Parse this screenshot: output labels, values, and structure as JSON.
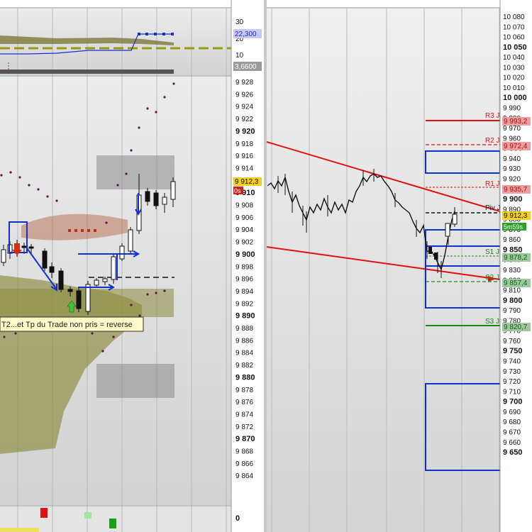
{
  "left_panel": {
    "indicator": {
      "ticks": [
        "30",
        "20",
        "10"
      ],
      "value_box": "22,300",
      "value_box_2": "3,6600"
    },
    "price_ticks": [
      "9 928",
      "9 926",
      "9 924",
      "9 922",
      "9 920",
      "9 918",
      "9 916",
      "9 914",
      "9 912",
      "9 910",
      "9 908",
      "9 906",
      "9 904",
      "9 902",
      "9 900",
      "9 898",
      "9 896",
      "9 894",
      "9 892",
      "9 890",
      "9 888",
      "9 886",
      "9 884",
      "9 882",
      "9 880",
      "9 878",
      "9 876",
      "9 874",
      "9 872",
      "9 870",
      "9 868",
      "9 866",
      "9 864"
    ],
    "bold_ticks": [
      "9 920",
      "9 910",
      "9 900",
      "9 890",
      "9 880",
      "9 870"
    ],
    "current_price": "9 912,3",
    "current_badge": "0s",
    "annotation": "T2...et Tp du Trade non pris = reverse",
    "bottom_tick": "0"
  },
  "right_panel": {
    "price_ticks": [
      "10 080",
      "10 070",
      "10 060",
      "10 050",
      "10 040",
      "10 030",
      "10 020",
      "10 010",
      "10 000",
      "9 990",
      "9 980",
      "9 970",
      "9 960",
      "9 950",
      "9 940",
      "9 930",
      "9 920",
      "9 910",
      "9 900",
      "9 890",
      "9 880",
      "9 870",
      "9 860",
      "9 850",
      "9 840",
      "9 830",
      "9 820",
      "9 810",
      "9 800",
      "9 790",
      "9 780",
      "9 770",
      "9 760",
      "9 750",
      "9 740",
      "9 730",
      "9 720",
      "9 710",
      "9 700",
      "9 690",
      "9 680",
      "9 670",
      "9 660",
      "9 650"
    ],
    "bold_ticks": [
      "10 050",
      "10 000",
      "9 950",
      "9 900",
      "9 850",
      "9 800",
      "9 750",
      "9 700",
      "9 650"
    ],
    "levels": [
      {
        "label": "R3 J",
        "value": "9 993,2",
        "color": "#e01010"
      },
      {
        "label": "R2 J",
        "value": "9 972,4",
        "color": "#e01010"
      },
      {
        "label": "R1 J",
        "value": "9 935,7",
        "color": "#e01010"
      },
      {
        "label": "Piv J",
        "value": "",
        "color": "#111111"
      },
      {
        "label": "S1 J",
        "value": "9 878,2",
        "color": "#1a8a1a"
      },
      {
        "label": "S2 J",
        "value": "9 857,4",
        "color": "#1a8a1a"
      },
      {
        "label": "S3 J",
        "value": "9 820,7",
        "color": "#1a8a1a"
      }
    ],
    "current_price": "9 912,3",
    "timer": "5m59s"
  }
}
